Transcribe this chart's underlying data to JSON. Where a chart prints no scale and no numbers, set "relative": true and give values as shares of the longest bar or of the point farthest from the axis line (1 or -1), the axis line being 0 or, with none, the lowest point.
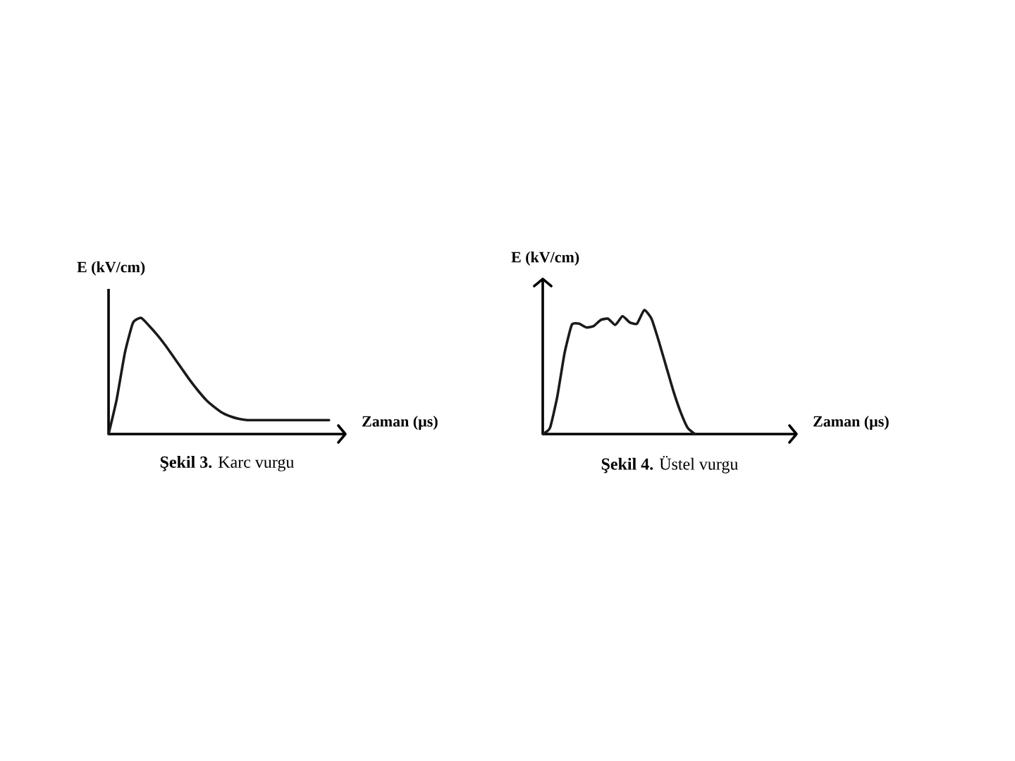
{
  "chart_data": [
    {
      "type": "line",
      "relative": true,
      "ylabel": "E (kV/cm)",
      "xlabel": "Zaman (µs)",
      "annotations": [
        "**Şekil 3.** Karc vurgu"
      ],
      "color": "#1a1a1a",
      "categories": [
        null,
        null,
        null,
        null,
        null,
        null,
        null,
        null,
        null,
        null,
        null,
        null,
        null,
        null,
        null,
        null,
        null,
        null,
        null,
        null,
        null,
        null,
        null,
        null,
        null,
        null,
        null,
        null,
        null,
        null
      ],
      "values": [
        0,
        0.3,
        0.7,
        0.96,
        1,
        0.93,
        0.85,
        0.76,
        0.66,
        0.56,
        0.46,
        0.37,
        0.29,
        0.23,
        0.18,
        0.15,
        0.13,
        0.12,
        0.12,
        0.12,
        0.12,
        0.12,
        0.12,
        0.12,
        0.12,
        0.12,
        0.12,
        0.12,
        null,
        null
      ]
    },
    {
      "type": "line",
      "relative": true,
      "ylabel": "E (kV/cm)",
      "xlabel": "Zaman (µs)",
      "annotations": [
        "**Şekil 4.** Üstel vurgu"
      ],
      "color": "#1a1a1a",
      "categories": [
        null,
        null,
        null,
        null,
        null,
        null,
        null,
        null,
        null,
        null,
        null,
        null,
        null,
        null,
        null,
        null,
        null,
        null,
        null,
        null,
        null,
        null,
        null,
        null,
        null,
        null,
        null,
        null,
        null,
        null,
        null,
        null,
        null,
        null,
        null,
        null
      ],
      "values": [
        0,
        0.05,
        0.3,
        0.65,
        0.88,
        0.89,
        0.86,
        0.87,
        0.92,
        0.93,
        0.88,
        0.95,
        0.9,
        0.89,
        1,
        0.93,
        0.75,
        0.55,
        0.35,
        0.18,
        0.05,
        0,
        null,
        null,
        null,
        null,
        null,
        null,
        null,
        null,
        null,
        null,
        null,
        null,
        null,
        null
      ]
    }
  ]
}
